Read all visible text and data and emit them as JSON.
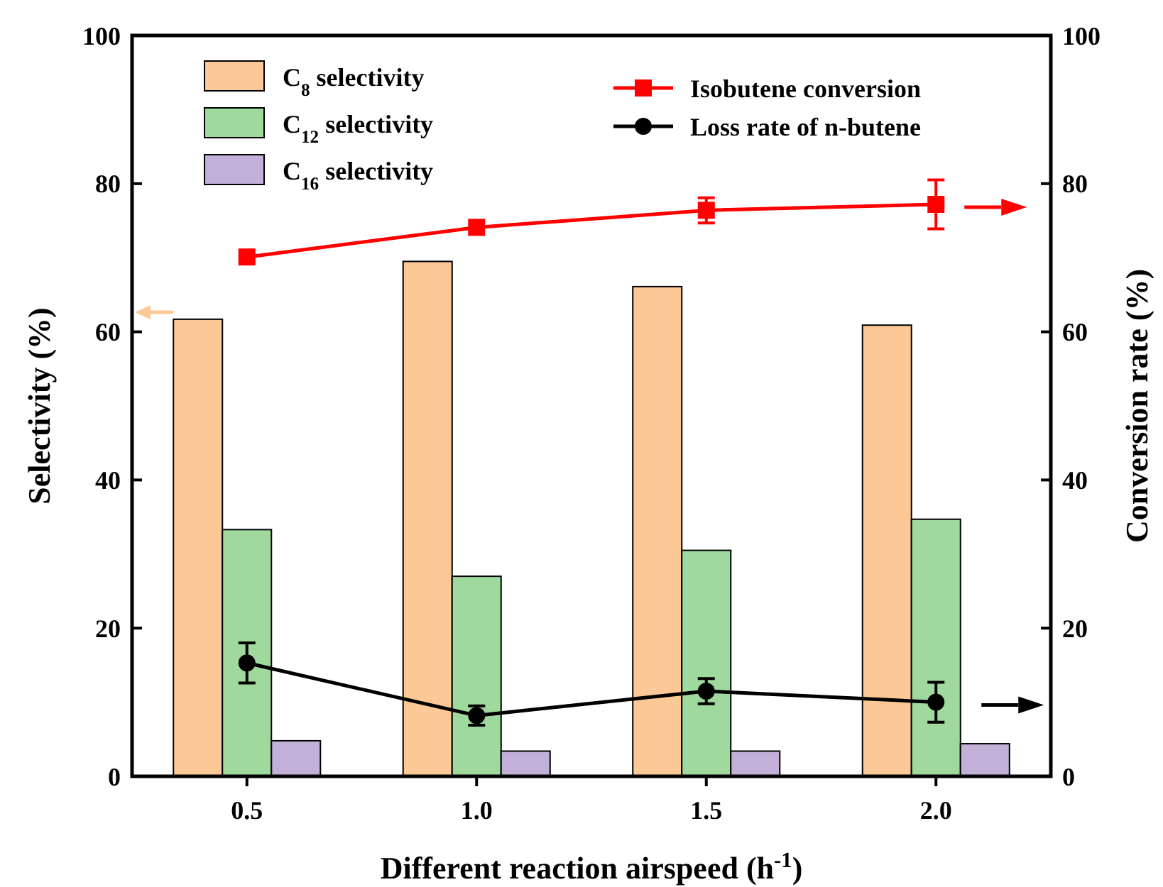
{
  "chart_data": {
    "type": "bar",
    "xlabel": "Different reaction airspeed (h$^{-1}$)",
    "ylabel": "Selectivity (%)",
    "y2label": "Conversion rate (%)",
    "categories": [
      "0.5",
      "1.0",
      "1.5",
      "2.0"
    ],
    "series": [
      {
        "name": "C$_{8}$ selectivity",
        "color": "#fbc896",
        "values": [
          61.7,
          69.5,
          66.1,
          60.9
        ]
      },
      {
        "name": "C$_{12}$ selectivity",
        "color": "#9fd99d",
        "values": [
          33.3,
          27.0,
          30.5,
          34.7
        ]
      },
      {
        "name": "C$_{16}$ selectivity",
        "color": "#c2b0d8",
        "values": [
          4.8,
          3.4,
          3.4,
          4.4
        ]
      },
      {
        "name": "Isobutene conversion",
        "type": "line",
        "axis": "y2",
        "marker": "square",
        "color": "#ff0000",
        "values": [
          70.1,
          74.1,
          76.4,
          77.2
        ],
        "errors": [
          null,
          null,
          1.7,
          3.3
        ]
      },
      {
        "name": "Loss rate of n-butene",
        "type": "line",
        "axis": "y2",
        "marker": "circle",
        "color": "#000000",
        "values": [
          15.3,
          8.2,
          11.5,
          10.0
        ],
        "errors": [
          2.7,
          1.3,
          1.7,
          2.7
        ]
      }
    ],
    "ylim": [
      0,
      100
    ],
    "yticks": [
      0,
      20,
      40,
      60,
      80,
      100
    ],
    "y2lim": [
      0,
      100
    ],
    "y2ticks": [
      0,
      20,
      40,
      60,
      80,
      100
    ],
    "grid": false,
    "legend": "top"
  }
}
